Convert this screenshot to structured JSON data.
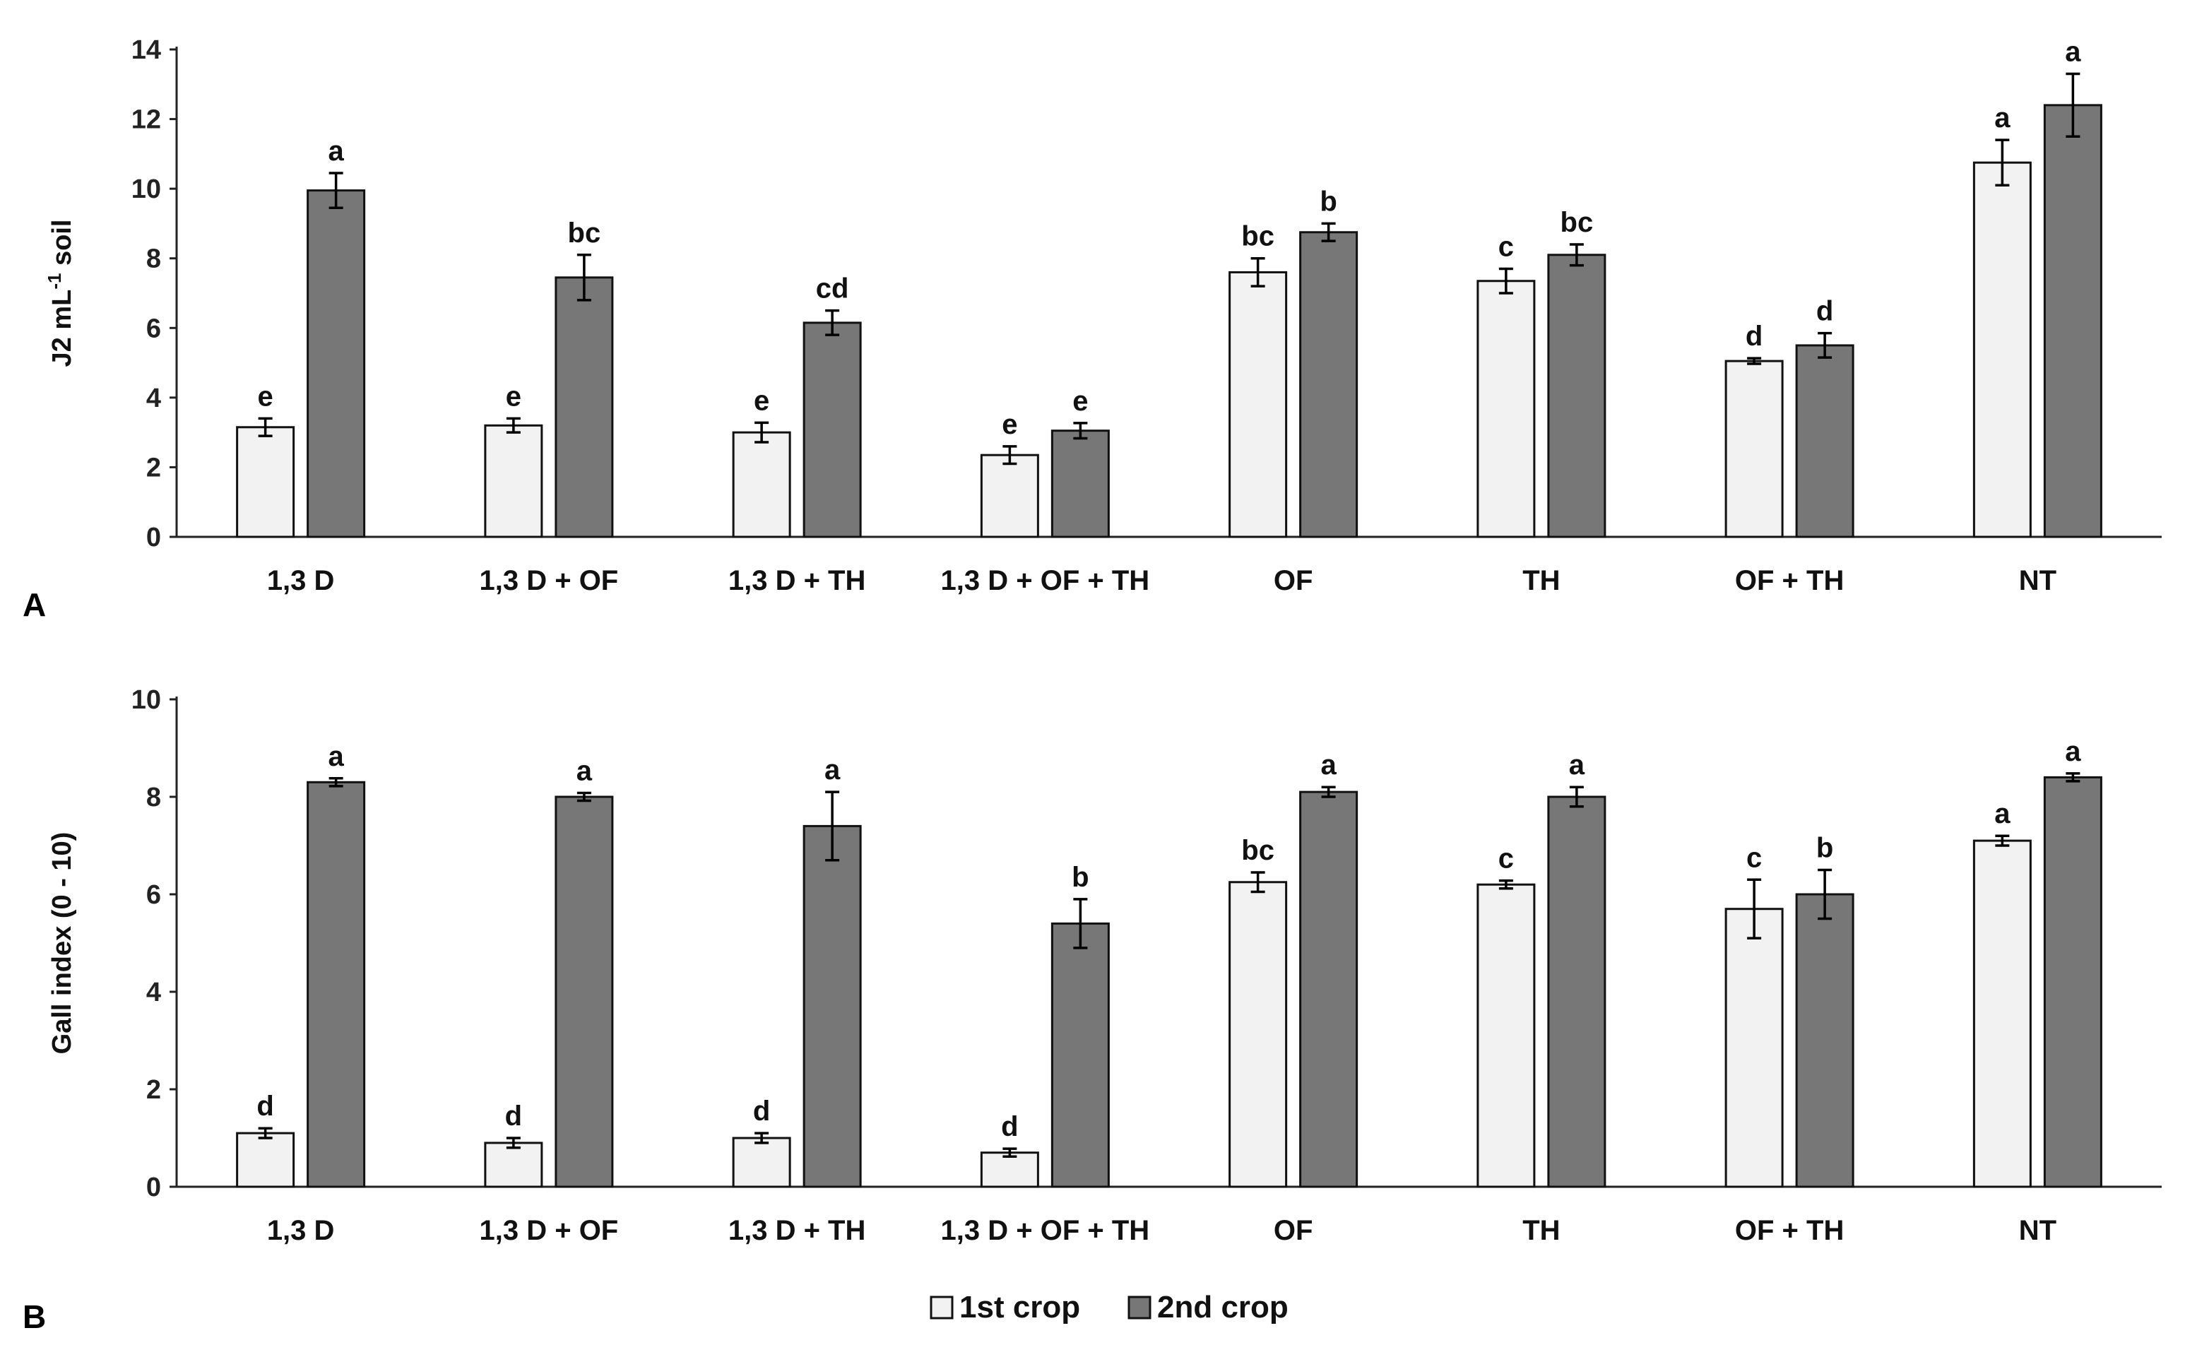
{
  "chart_data": [
    {
      "type": "bar",
      "panel": "A",
      "ylabel": "J2 mL-1 soil",
      "ylabel_parts": {
        "base": "J2  mL",
        "sup": "-1",
        "suffix": " soil"
      },
      "ylim": [
        0,
        14
      ],
      "yticks": [
        0,
        2,
        4,
        6,
        8,
        10,
        12,
        14
      ],
      "categories": [
        "1,3 D",
        "1,3 D + OF",
        "1,3 D + TH",
        "1,3 D + OF + TH",
        "OF",
        "TH",
        "OF + TH",
        "NT"
      ],
      "series": [
        {
          "name": "1st crop",
          "values": [
            3.15,
            3.2,
            3.0,
            2.35,
            7.6,
            7.35,
            5.05,
            10.75
          ],
          "errors": [
            0.25,
            0.2,
            0.28,
            0.25,
            0.4,
            0.35,
            0.08,
            0.65
          ],
          "letters": [
            "e",
            "e",
            "e",
            "e",
            "bc",
            "c",
            "d",
            "a"
          ]
        },
        {
          "name": "2nd crop",
          "values": [
            9.95,
            7.45,
            6.15,
            3.05,
            8.75,
            8.1,
            5.5,
            12.4
          ],
          "errors": [
            0.5,
            0.65,
            0.35,
            0.22,
            0.25,
            0.3,
            0.35,
            0.9
          ],
          "letters": [
            "a",
            "bc",
            "cd",
            "e",
            "b",
            "bc",
            "d",
            "a"
          ]
        }
      ]
    },
    {
      "type": "bar",
      "panel": "B",
      "ylabel": "Gall index (0 - 10)",
      "ylim": [
        0,
        10
      ],
      "yticks": [
        0,
        2,
        4,
        6,
        8,
        10
      ],
      "categories": [
        "1,3 D",
        "1,3 D + OF",
        "1,3 D + TH",
        "1,3 D + OF + TH",
        "OF",
        "TH",
        "OF + TH",
        "NT"
      ],
      "series": [
        {
          "name": "1st crop",
          "values": [
            1.1,
            0.9,
            1.0,
            0.7,
            6.25,
            6.2,
            5.7,
            7.1
          ],
          "errors": [
            0.1,
            0.1,
            0.1,
            0.08,
            0.2,
            0.08,
            0.6,
            0.1
          ],
          "letters": [
            "d",
            "d",
            "d",
            "d",
            "bc",
            "c",
            "c",
            "a"
          ]
        },
        {
          "name": "2nd crop",
          "values": [
            8.3,
            8.0,
            7.4,
            5.4,
            8.1,
            8.0,
            6.0,
            8.4
          ],
          "errors": [
            0.08,
            0.08,
            0.7,
            0.5,
            0.1,
            0.2,
            0.5,
            0.08
          ],
          "letters": [
            "a",
            "a",
            "a",
            "b",
            "a",
            "a",
            "b",
            "a"
          ]
        }
      ]
    }
  ],
  "legend": [
    {
      "label": "1st crop",
      "color": "#f2f2f2"
    },
    {
      "label": "2nd crop",
      "color": "#777777"
    }
  ],
  "colors": {
    "series1": "#f2f2f2",
    "series2": "#777777",
    "stroke": "#111111"
  }
}
